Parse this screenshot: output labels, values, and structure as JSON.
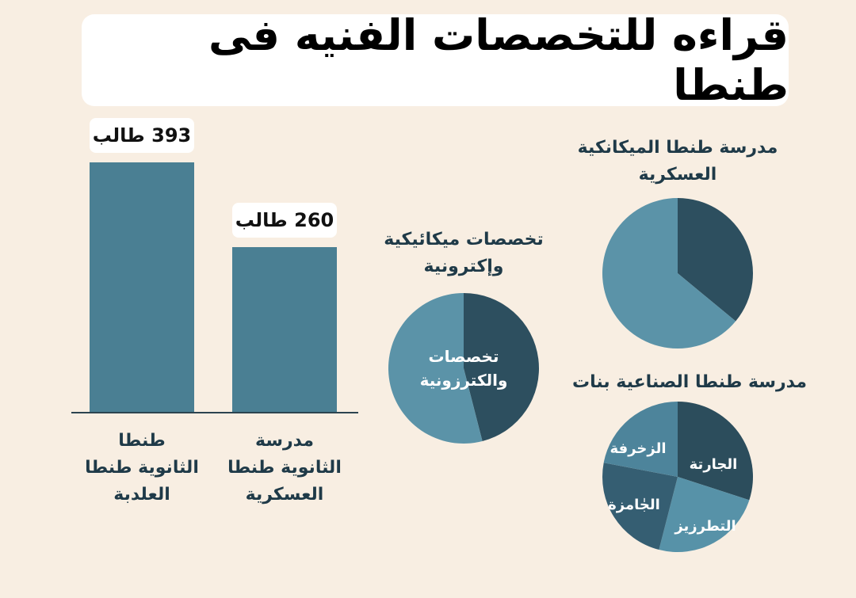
{
  "title": "قراءه للتخصصات الفنيه فى طنطا",
  "chart_data": [
    {
      "type": "bar",
      "categories": [
        "طنطا\nالثانوية طنطا\nالعلدبة",
        "مدرسة\nالثانوية طنطا\nالعسكرية"
      ],
      "values": [
        393,
        260
      ],
      "value_labels": [
        "393 طالب",
        "260 طالب"
      ],
      "unit": "طالب",
      "color": "#4a7f93"
    },
    {
      "type": "pie",
      "title": "تخصصات ميكائيكية\nوإكترونية",
      "slices": [
        {
          "label": "",
          "value": 46,
          "color": "#2d4f5f"
        },
        {
          "label": "تخصصات\nوالكترزونية",
          "value": 54,
          "color": "#5b93a8"
        }
      ]
    },
    {
      "type": "pie",
      "title": "مدرسة طنطا الميكانكية\nالعسكرية",
      "slices": [
        {
          "label": "",
          "value": 36,
          "color": "#2d4f5f"
        },
        {
          "label": "",
          "value": 64,
          "color": "#5b93a8"
        }
      ]
    },
    {
      "type": "pie",
      "title": "مدرسة طنطا الصناعية  بنات",
      "slices": [
        {
          "label": "الجارتة",
          "value": 30,
          "color": "#2c4d5c"
        },
        {
          "label": "التطرزيز",
          "value": 24,
          "color": "#5792a8"
        },
        {
          "label": "الجٰامزة",
          "value": 24,
          "color": "#355e72"
        },
        {
          "label": "الزخرفة",
          "value": 22,
          "color": "#4d849b"
        }
      ]
    }
  ]
}
